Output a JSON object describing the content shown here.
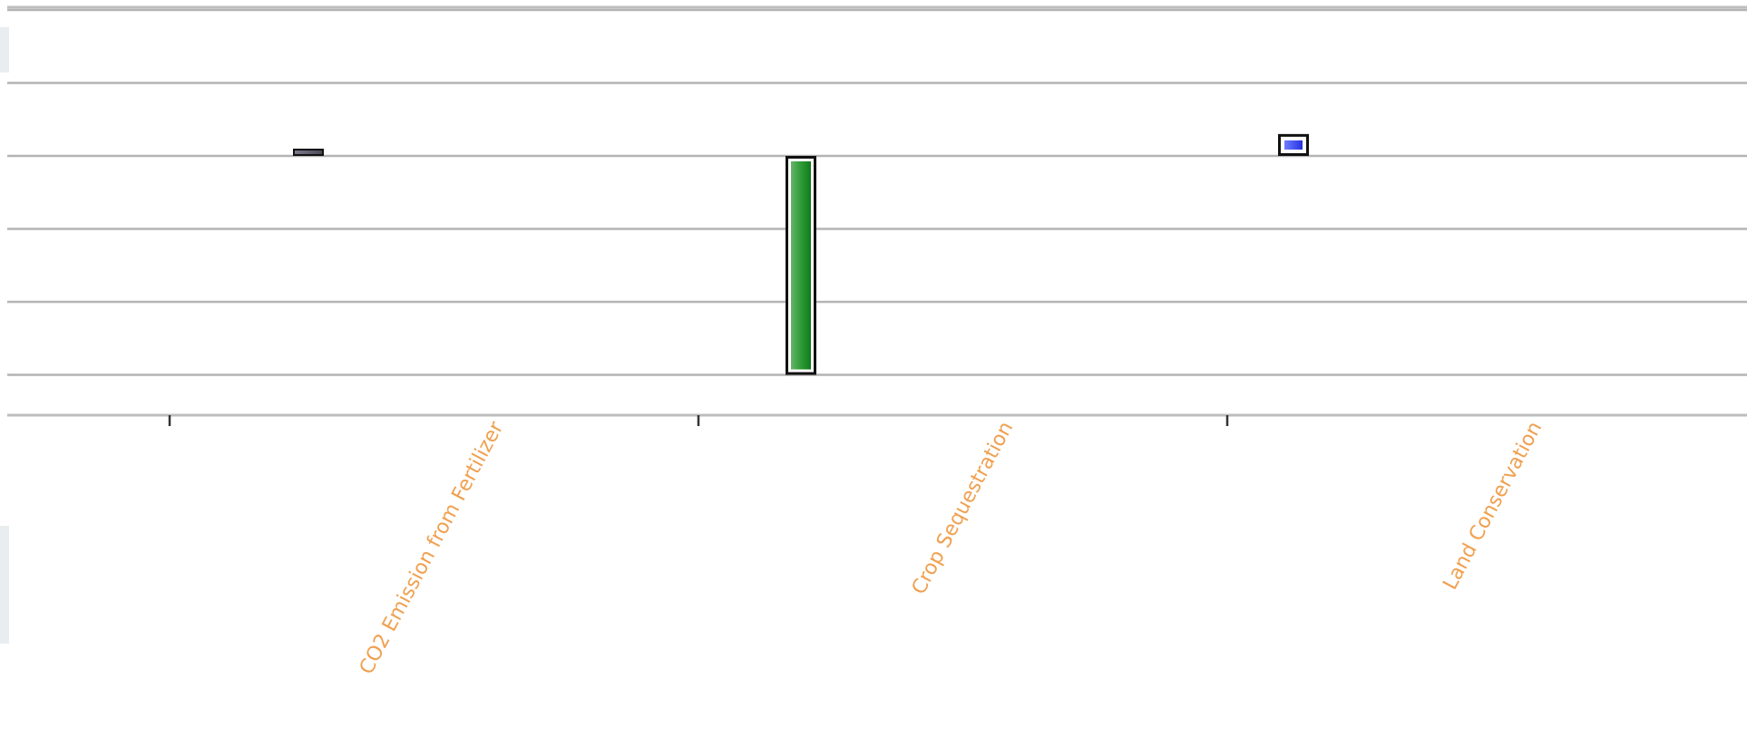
{
  "chart_data": {
    "type": "bar",
    "title": "",
    "xlabel": "",
    "ylabel": "",
    "categories": [
      "CO2 Emission from Fertilizer",
      "Crop Sequestration",
      "Land Conservation"
    ],
    "series": [
      {
        "values": [
          0.03,
          -3.0,
          0.3
        ],
        "colors": [
          "#555566",
          "#1f8a2a",
          "#3b4cff"
        ]
      }
    ],
    "ylim": [
      -3.55,
      2.05
    ],
    "y_gridlines": [
      -3,
      -2,
      -1,
      0,
      1,
      2
    ],
    "grid": true,
    "label_color": "#f0a050",
    "gridline_color": "#b4b4b4"
  }
}
